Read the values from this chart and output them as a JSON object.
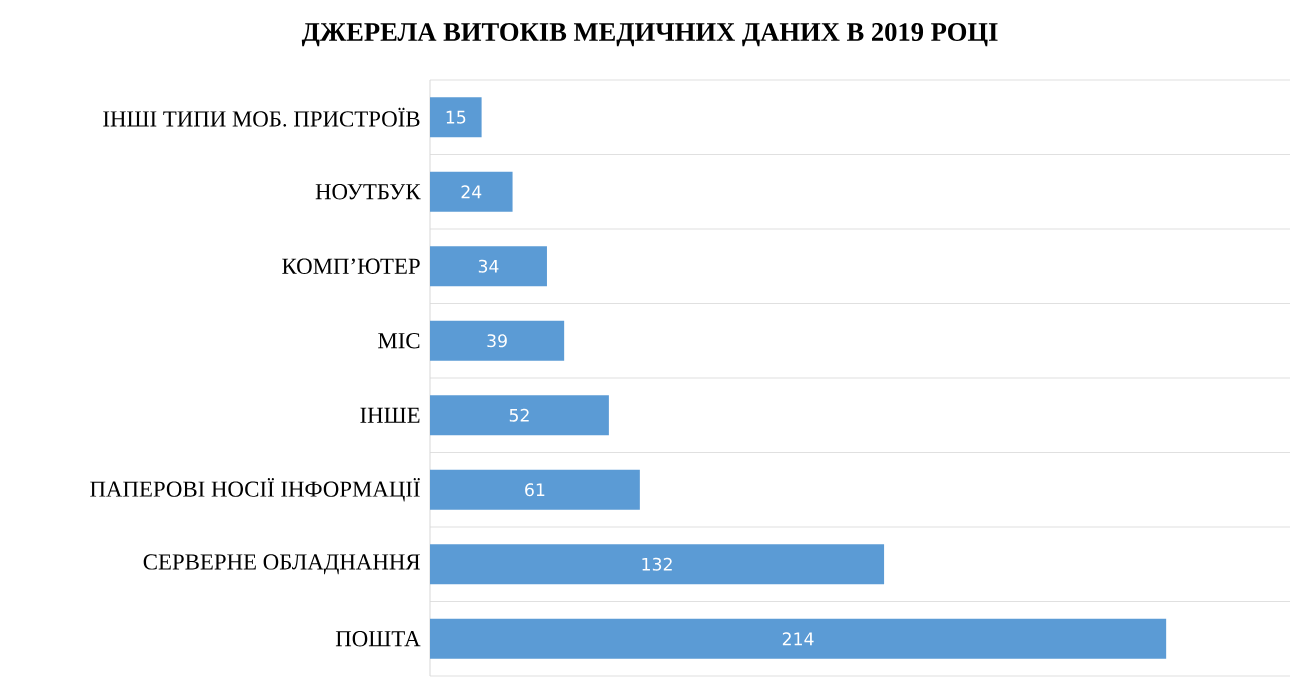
{
  "chart_data": {
    "type": "bar",
    "orientation": "horizontal",
    "title": "ДЖЕРЕЛА ВИТОКІВ МЕДИЧНИХ ДАНИХ В 2019 РОЦІ",
    "categories": [
      "ІНШІ ТИПИ МОБ. ПРИСТРОЇВ",
      "НОУТБУК",
      "КОМП’ЮТЕР",
      "МІС",
      "ІНШЕ",
      "ПАПЕРОВІ НОСІЇ ІНФОРМАЦІЇ",
      "СЕРВЕРНЕ ОБЛАДНАННЯ",
      "ПОШТА"
    ],
    "values": [
      15,
      24,
      34,
      39,
      52,
      61,
      132,
      214
    ],
    "color": "#5b9bd5",
    "xlim": [
      0,
      250
    ],
    "data_labels": true,
    "grid": "y",
    "tick_labels": "y"
  }
}
